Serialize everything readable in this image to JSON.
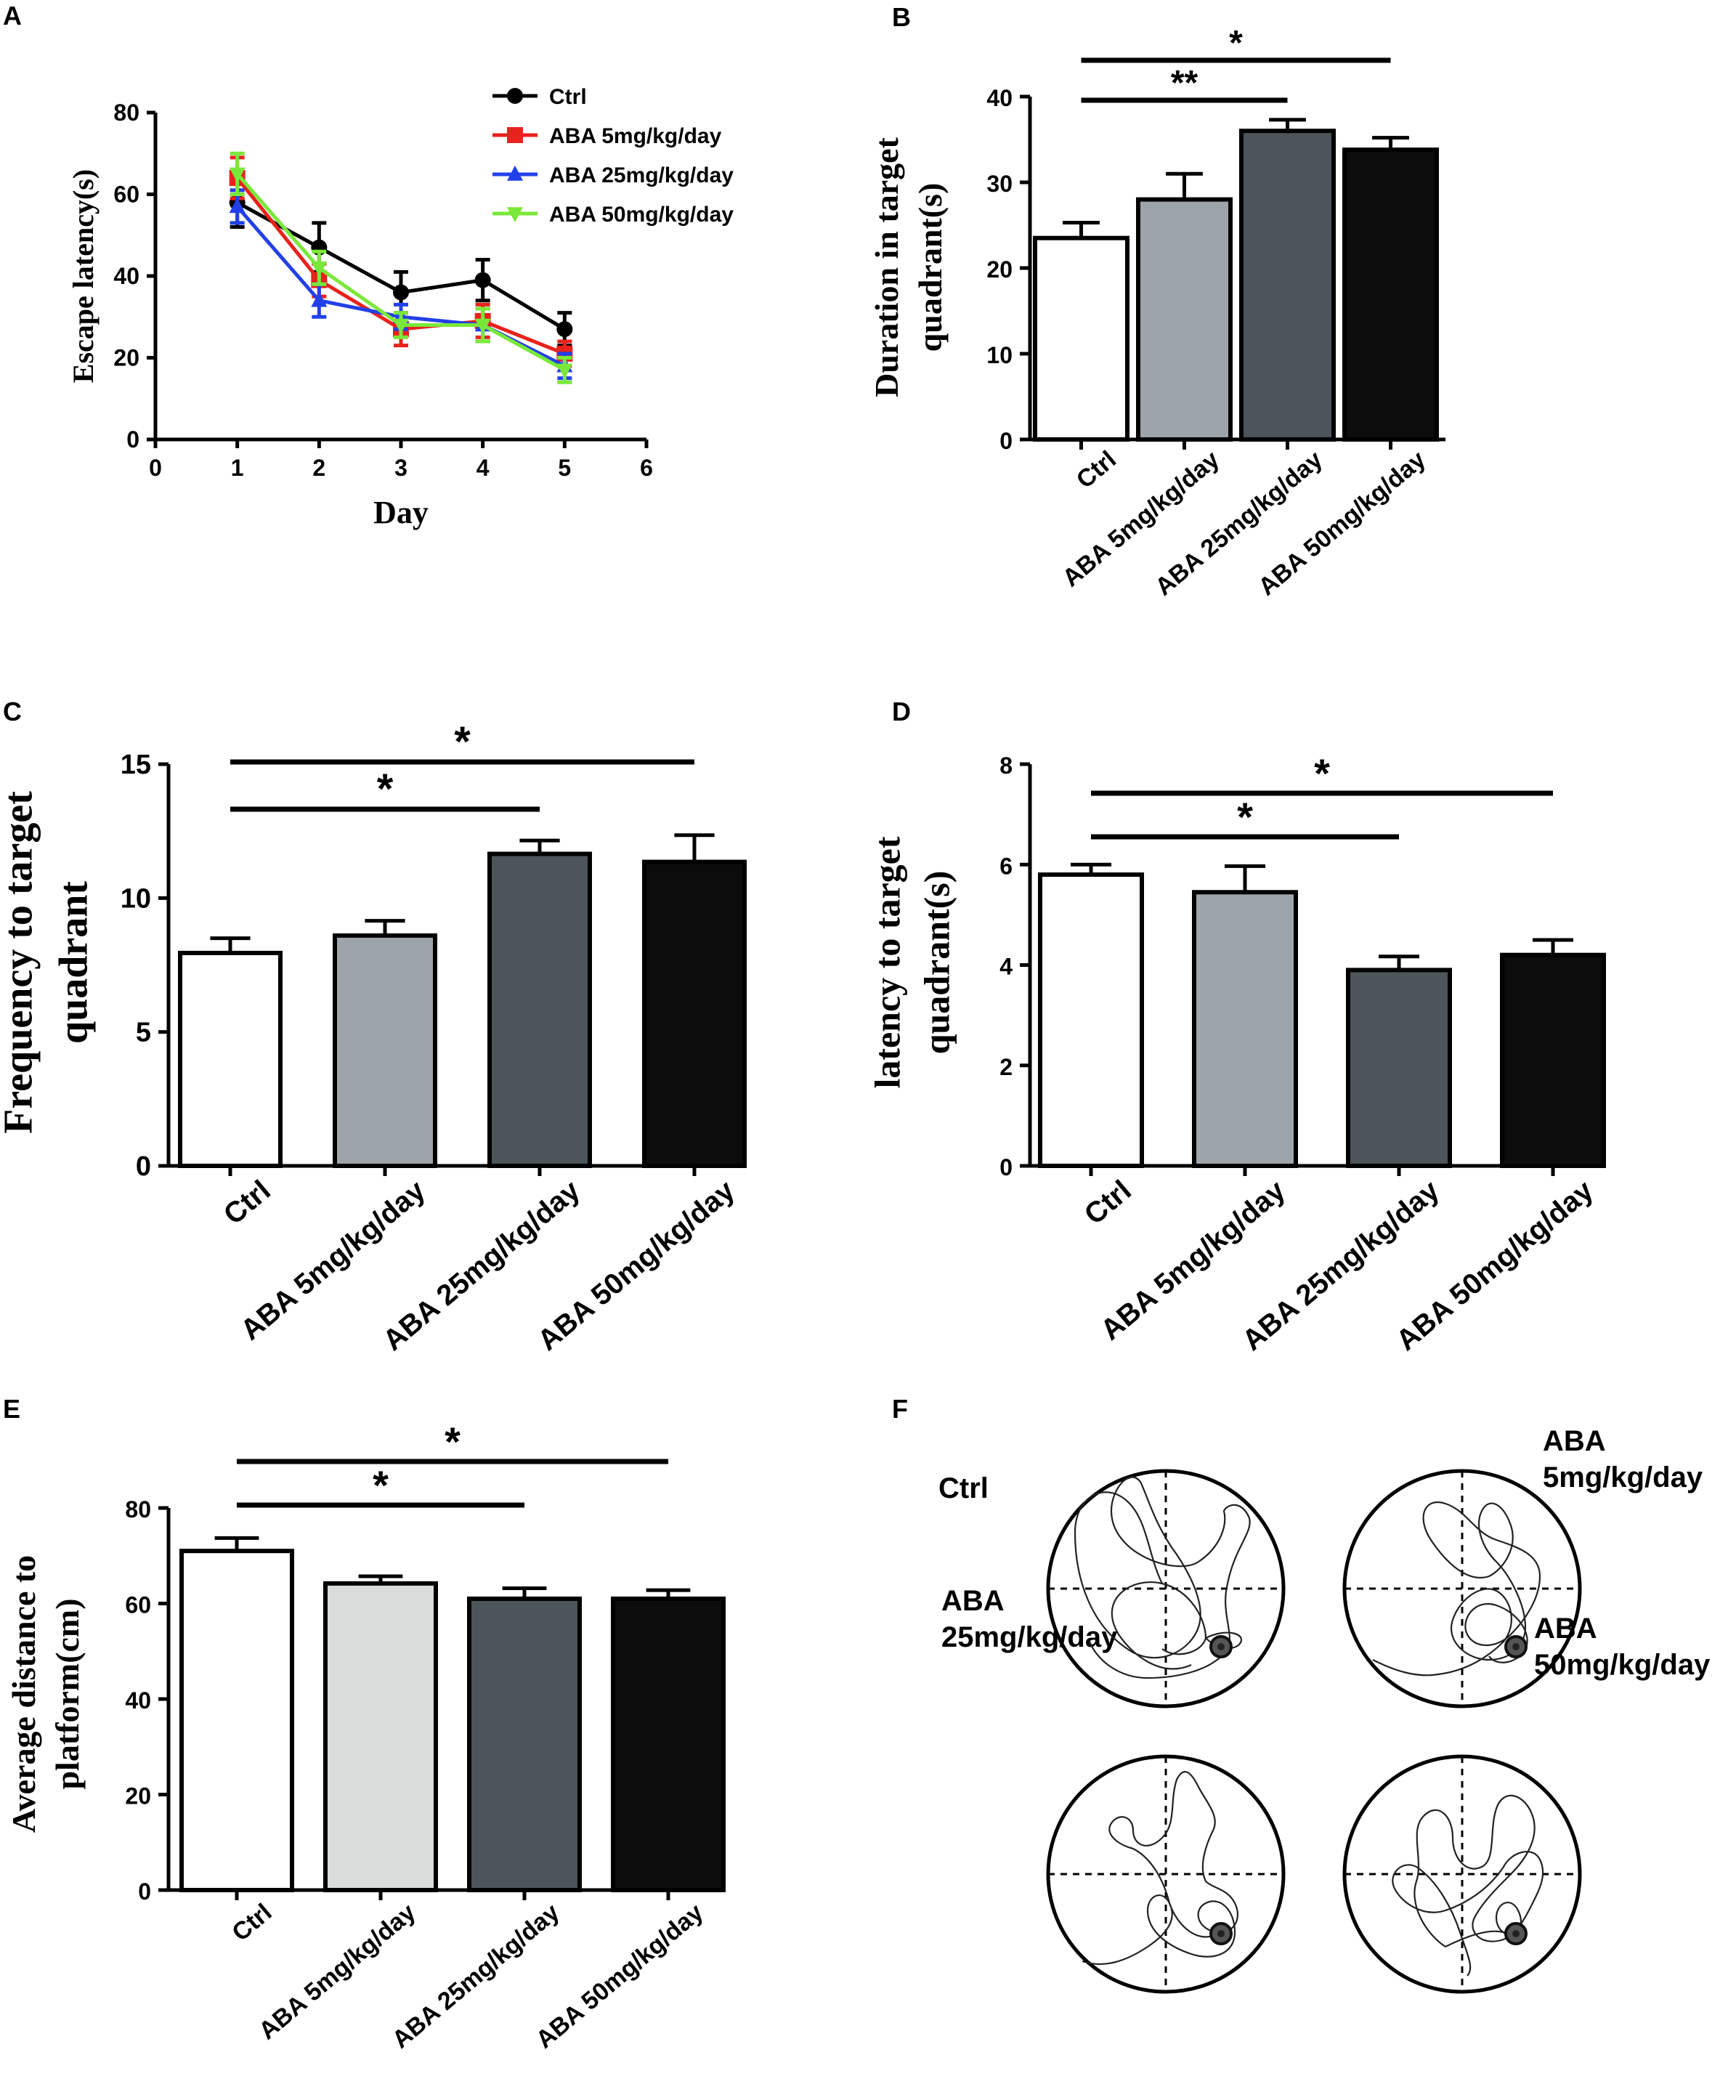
{
  "panels": {
    "A": {
      "letter": "A"
    },
    "B": {
      "letter": "B"
    },
    "C": {
      "letter": "C"
    },
    "D": {
      "letter": "D"
    },
    "E": {
      "letter": "E"
    },
    "F": {
      "letter": "F"
    }
  },
  "colors": {
    "ctrl": "#ffffff",
    "aba5": "#9ea5aa",
    "aba25": "#4c5559",
    "aba50": "#0c0c0c",
    "aba5_panelE": "#d9dcda",
    "line_ctrl": "#000000",
    "line_aba5": "#e8221c",
    "line_aba25": "#2240e8",
    "line_aba50": "#7ae83a"
  },
  "chart_data": [
    {
      "id": "A",
      "type": "line",
      "xlabel": "Day",
      "ylabel": "Escape latency(s)",
      "xlim": [
        0,
        6
      ],
      "ylim": [
        0,
        80
      ],
      "xticks": [
        "0",
        "1",
        "2",
        "3",
        "4",
        "5",
        "6"
      ],
      "yticks": [
        "0",
        "20",
        "40",
        "60",
        "80"
      ],
      "x": [
        1,
        2,
        3,
        4,
        5
      ],
      "series": [
        {
          "name": "Ctrl",
          "marker": "circle",
          "values": [
            58,
            47,
            36,
            39,
            27
          ],
          "err": [
            6,
            6,
            5,
            5,
            4
          ]
        },
        {
          "name": "ABA 5mg/kg/day",
          "marker": "square",
          "values": [
            64,
            39,
            27,
            29,
            21
          ],
          "err": [
            5,
            4,
            4,
            4,
            3
          ]
        },
        {
          "name": "ABA 25mg/kg/day",
          "marker": "triangle-up",
          "values": [
            57,
            34,
            30,
            28,
            18
          ],
          "err": [
            4,
            4,
            3,
            4,
            3
          ]
        },
        {
          "name": "ABA 50mg/kg/day",
          "marker": "triangle-down",
          "values": [
            65,
            42,
            28,
            28,
            17
          ],
          "err": [
            5,
            4,
            3,
            4,
            3
          ]
        }
      ]
    },
    {
      "id": "B",
      "type": "bar",
      "ylabel_lines": [
        "Duration in target",
        "quadrant(s)"
      ],
      "ylim": [
        0,
        40
      ],
      "yticks": [
        "0",
        "10",
        "20",
        "30",
        "40"
      ],
      "categories": [
        "Ctrl",
        "ABA 5mg/kg/day",
        "ABA 25mg/kg/day",
        "ABA 50mg/kg/day"
      ],
      "values": [
        23.5,
        28,
        36,
        33.8
      ],
      "err": [
        1.8,
        3,
        1.3,
        1.4
      ],
      "annotations": [
        {
          "from": 0,
          "to": 2,
          "label": "**"
        },
        {
          "from": 0,
          "to": 3,
          "label": "*"
        }
      ]
    },
    {
      "id": "C",
      "type": "bar",
      "ylabel_lines": [
        "Frequency to target",
        "quadrant"
      ],
      "ylim": [
        0,
        15
      ],
      "yticks": [
        "0",
        "5",
        "10",
        "15"
      ],
      "categories": [
        "Ctrl",
        "ABA 5mg/kg/day",
        "ABA 25mg/kg/day",
        "ABA 50mg/kg/day"
      ],
      "values": [
        7.95,
        8.6,
        11.65,
        11.35
      ],
      "err": [
        0.55,
        0.55,
        0.5,
        1.0
      ],
      "annotations": [
        {
          "from": 0,
          "to": 2,
          "label": "*"
        },
        {
          "from": 0,
          "to": 3,
          "label": "*"
        }
      ]
    },
    {
      "id": "D",
      "type": "bar",
      "ylabel_lines": [
        "latency  to target",
        "quadrant(s)"
      ],
      "ylim": [
        0,
        8
      ],
      "yticks": [
        "0",
        "2",
        "4",
        "6",
        "8"
      ],
      "categories": [
        "Ctrl",
        "ABA 5mg/kg/day",
        "ABA 25mg/kg/day",
        "ABA 50mg/kg/day"
      ],
      "values": [
        5.8,
        5.45,
        3.9,
        4.2
      ],
      "err": [
        0.2,
        0.52,
        0.27,
        0.3
      ],
      "annotations": [
        {
          "from": 0,
          "to": 2,
          "label": "*"
        },
        {
          "from": 0,
          "to": 3,
          "label": "*"
        }
      ]
    },
    {
      "id": "E",
      "type": "bar",
      "ylabel_lines": [
        "Average distance to",
        "platform(cm)"
      ],
      "ylim": [
        0,
        80
      ],
      "yticks": [
        "0",
        "20",
        "40",
        "60",
        "80"
      ],
      "categories": [
        "Ctrl",
        "ABA 5mg/kg/day",
        "ABA 25mg/kg/day",
        "ABA 50mg/kg/day"
      ],
      "values": [
        71,
        64.2,
        61,
        61
      ],
      "err": [
        2.7,
        1.5,
        2.2,
        1.8
      ],
      "annotations": [
        {
          "from": 0,
          "to": 2,
          "label": "*"
        },
        {
          "from": 0,
          "to": 3,
          "label": "*"
        }
      ]
    }
  ],
  "trackmaps": {
    "labels": [
      {
        "lines": [
          "Ctrl"
        ]
      },
      {
        "lines": [
          "ABA",
          "5mg/kg/day"
        ]
      },
      {
        "lines": [
          "ABA",
          "25mg/kg/day"
        ]
      },
      {
        "lines": [
          "ABA",
          "50mg/kg/day"
        ]
      }
    ]
  }
}
